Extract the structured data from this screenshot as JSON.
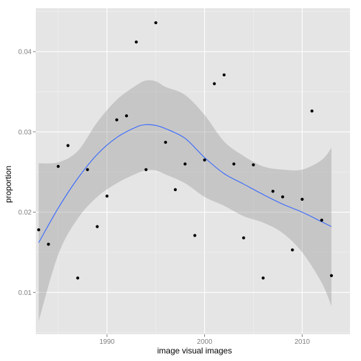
{
  "chart_data": {
    "type": "scatter",
    "xlabel": "image visual images",
    "ylabel": "proportion",
    "xlim": [
      1982.7,
      2014.9
    ],
    "ylim": [
      0.0048,
      0.0454
    ],
    "x_ticks": [
      1990,
      2000,
      2010
    ],
    "y_ticks": [
      0.01,
      0.02,
      0.03,
      0.04
    ],
    "x_tick_labels": [
      "1990",
      "2000",
      "2010"
    ],
    "y_tick_labels": [
      "0.01",
      "0.02",
      "0.03",
      "0.04"
    ],
    "grid": true,
    "background": "#e5e5e5",
    "gridline_color": "#ffffff",
    "point_color": "#000000",
    "smooth_color": "#3366ff",
    "band_color": "#999999",
    "points": [
      [
        1983,
        0.0178
      ],
      [
        1984,
        0.016
      ],
      [
        1985,
        0.0257
      ],
      [
        1986,
        0.0283
      ],
      [
        1987,
        0.0118
      ],
      [
        1988,
        0.0253
      ],
      [
        1989,
        0.0182
      ],
      [
        1990,
        0.022
      ],
      [
        1991,
        0.0315
      ],
      [
        1992,
        0.032
      ],
      [
        1993,
        0.0412
      ],
      [
        1994,
        0.0253
      ],
      [
        1995,
        0.0436
      ],
      [
        1996,
        0.0287
      ],
      [
        1997,
        0.0228
      ],
      [
        1998,
        0.026
      ],
      [
        1999,
        0.0171
      ],
      [
        2000,
        0.0265
      ],
      [
        2001,
        0.036
      ],
      [
        2002,
        0.0371
      ],
      [
        2003,
        0.026
      ],
      [
        2004,
        0.0168
      ],
      [
        2005,
        0.0259
      ],
      [
        2006,
        0.0118
      ],
      [
        2007,
        0.0226
      ],
      [
        2008,
        0.0219
      ],
      [
        2009,
        0.0153
      ],
      [
        2010,
        0.0216
      ],
      [
        2011,
        0.0326
      ],
      [
        2012,
        0.019
      ],
      [
        2013,
        0.0121
      ]
    ],
    "smooth": {
      "x": [
        1983,
        1985,
        1987,
        1989,
        1991,
        1993,
        1994,
        1995,
        1996,
        1998,
        2000,
        2002,
        2004,
        2006,
        2008,
        2010,
        2012,
        2013
      ],
      "y": [
        0.0162,
        0.0205,
        0.0242,
        0.0272,
        0.0293,
        0.0306,
        0.0309,
        0.0308,
        0.0304,
        0.0292,
        0.0268,
        0.0248,
        0.0235,
        0.0222,
        0.021,
        0.02,
        0.0188,
        0.0182
      ],
      "upper": [
        0.0261,
        0.0262,
        0.0276,
        0.0312,
        0.034,
        0.0358,
        0.0364,
        0.0363,
        0.0356,
        0.0346,
        0.0321,
        0.0288,
        0.027,
        0.0257,
        0.0253,
        0.0253,
        0.0265,
        0.028
      ],
      "lower": [
        0.0064,
        0.0147,
        0.0192,
        0.0219,
        0.0236,
        0.0248,
        0.0252,
        0.0252,
        0.0247,
        0.0236,
        0.0219,
        0.0208,
        0.0195,
        0.0187,
        0.0174,
        0.015,
        0.0112,
        0.0083
      ]
    }
  }
}
